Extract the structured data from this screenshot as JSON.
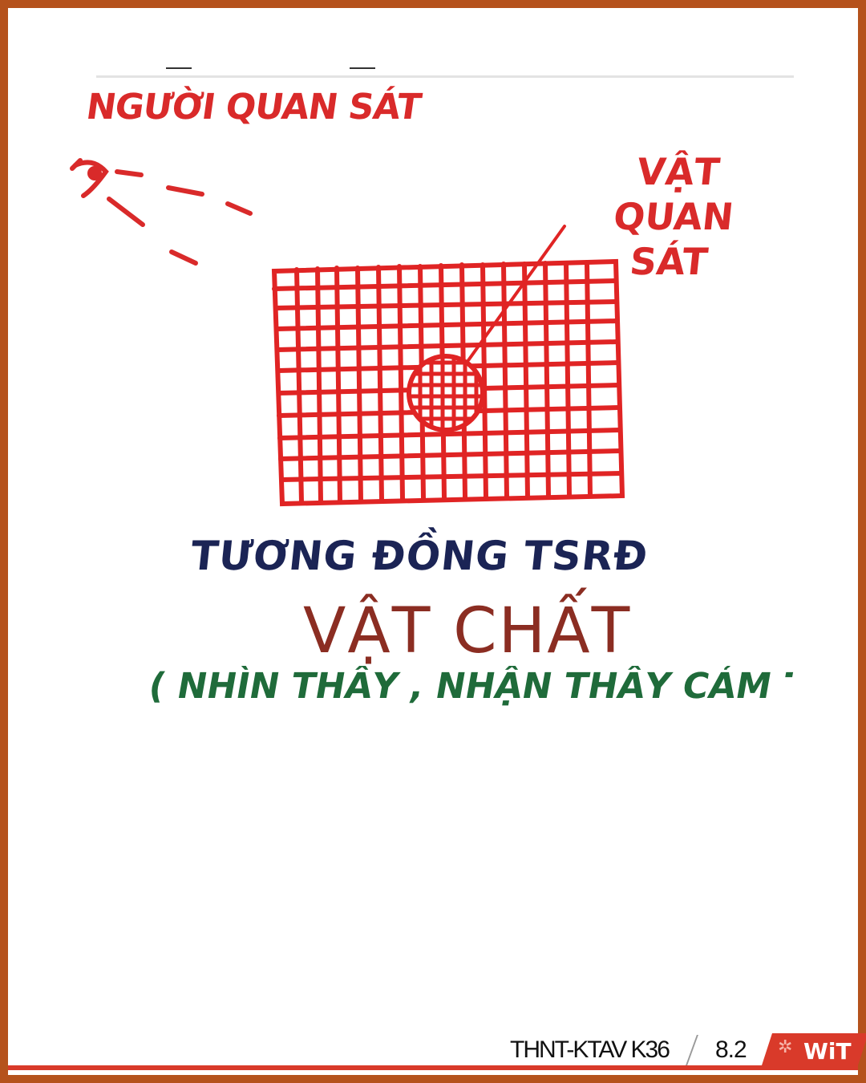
{
  "labels": {
    "observer": "NGƯỜI QUAN SÁT",
    "object": "VẬT QUAN SÁT",
    "similarity": "TƯƠNG ĐỒNG TSRĐ",
    "matter": "VẬT CHẤT",
    "perceive": "( NHÌN THẤY , NHẬN THẤY CẢM THẤY"
  },
  "footer": {
    "course": "THNT-KTAV K36",
    "page": "8.2",
    "logo": "WiT"
  },
  "colors": {
    "frame": "#b5521c",
    "sketch_red": "#d92a2a",
    "navy": "#1b2455",
    "brown": "#8b2d22",
    "green": "#1f6b3a",
    "footer_red": "#d93a2a"
  }
}
